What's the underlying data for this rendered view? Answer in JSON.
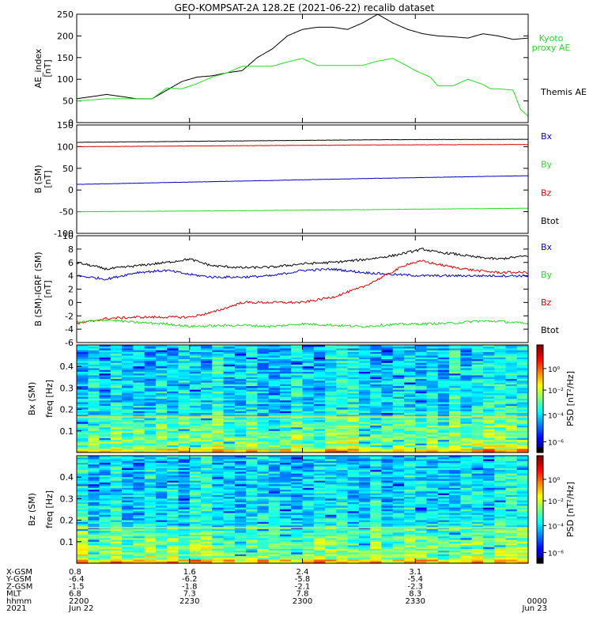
{
  "title": "GEO-KOMPSAT-2A 128.2E (2021-06-22) recalib dataset",
  "colors": {
    "black": "#000000",
    "green": "#22dd22",
    "red": "#dd0000",
    "blue": "#0000cc",
    "kyoto": "#22cc22"
  },
  "chart_data": [
    {
      "type": "line",
      "name": "ae",
      "ylabel_lines": [
        "AE_index",
        "[nT]"
      ],
      "ylim": [
        0,
        250
      ],
      "yticks": [
        "0",
        "50",
        "100",
        "150",
        "200",
        "250"
      ],
      "legend": [
        {
          "label": "Kyoto\nproxy AE",
          "color": "green"
        },
        {
          "label": "Themis AE",
          "color": "black"
        }
      ],
      "series": [
        {
          "name": "Themis AE",
          "color": "black",
          "x": [
            0,
            4,
            6,
            8,
            10,
            12,
            14,
            16,
            18,
            20,
            22,
            24,
            26,
            28,
            30,
            32,
            34,
            36,
            38,
            40,
            42,
            44,
            46,
            48,
            50,
            52,
            54,
            56,
            58,
            60
          ],
          "y": [
            55,
            65,
            60,
            55,
            55,
            75,
            95,
            105,
            108,
            115,
            120,
            150,
            170,
            200,
            215,
            220,
            220,
            215,
            230,
            250,
            230,
            215,
            205,
            200,
            198,
            195,
            205,
            200,
            192,
            195
          ]
        },
        {
          "name": "Kyoto proxy AE",
          "color": "green",
          "x": [
            0,
            4,
            6,
            8,
            10,
            12,
            14,
            16,
            18,
            20,
            22,
            24,
            26,
            28,
            30,
            32,
            34,
            36,
            38,
            40,
            42,
            44,
            45,
            47,
            48,
            50,
            52,
            54,
            55,
            56,
            58,
            59,
            60
          ],
          "y": [
            50,
            55,
            55,
            55,
            55,
            80,
            78,
            90,
            105,
            115,
            130,
            130,
            130,
            140,
            148,
            132,
            132,
            132,
            132,
            142,
            148,
            130,
            120,
            105,
            85,
            85,
            100,
            88,
            78,
            78,
            75,
            30,
            15
          ]
        }
      ]
    },
    {
      "type": "line",
      "name": "bsm",
      "ylabel_lines": [
        "B (SM)",
        "[nT]"
      ],
      "ylim": [
        -100,
        150
      ],
      "yticks": [
        "-100",
        "-50",
        "0",
        "50",
        "100",
        "150"
      ],
      "legend": [
        {
          "label": "Bx",
          "color": "blue"
        },
        {
          "label": "By",
          "color": "green"
        },
        {
          "label": "Bz",
          "color": "red"
        },
        {
          "label": "Btot",
          "color": "black"
        }
      ],
      "series": [
        {
          "name": "Btot",
          "color": "black",
          "x": [
            0,
            20,
            40,
            60
          ],
          "y": [
            110,
            113,
            116,
            117
          ]
        },
        {
          "name": "Bz",
          "color": "red",
          "x": [
            0,
            20,
            40,
            60
          ],
          "y": [
            100,
            102,
            104,
            105
          ]
        },
        {
          "name": "Bx",
          "color": "blue",
          "x": [
            0,
            20,
            40,
            60
          ],
          "y": [
            13,
            20,
            27,
            33
          ]
        },
        {
          "name": "By",
          "color": "green",
          "x": [
            0,
            20,
            40,
            60
          ],
          "y": [
            -50,
            -48,
            -45,
            -42
          ]
        }
      ]
    },
    {
      "type": "line",
      "name": "bsm-igrf",
      "ylabel_lines": [
        "B (SM)-IGRF (SM)",
        "[nT]"
      ],
      "ylim": [
        -6,
        10
      ],
      "yticks": [
        "-6",
        "-4",
        "-2",
        "0",
        "2",
        "4",
        "6",
        "8",
        "10"
      ],
      "legend": [
        {
          "label": "Bx",
          "color": "blue"
        },
        {
          "label": "By",
          "color": "green"
        },
        {
          "label": "Bz",
          "color": "red"
        },
        {
          "label": "Btot",
          "color": "black"
        }
      ],
      "series": [
        {
          "name": "Btot",
          "color": "black",
          "x": [
            0,
            4,
            8,
            12,
            15,
            18,
            22,
            26,
            30,
            34,
            38,
            42,
            44,
            46,
            48,
            50,
            53,
            56,
            60
          ],
          "y": [
            6,
            5,
            5.5,
            6,
            6.5,
            5.5,
            5.2,
            5.3,
            5.8,
            6,
            6.4,
            7,
            7.5,
            8,
            7.5,
            7.3,
            6.8,
            6.5,
            7
          ]
        },
        {
          "name": "Bx",
          "color": "blue",
          "x": [
            0,
            4,
            8,
            12,
            15,
            18,
            22,
            26,
            30,
            34,
            38,
            42,
            46,
            50,
            53,
            56,
            60
          ],
          "y": [
            4,
            3.5,
            4.5,
            4.8,
            4.2,
            3.8,
            3.8,
            4,
            4.8,
            5,
            4.5,
            4.2,
            4,
            4,
            4,
            4,
            4
          ]
        },
        {
          "name": "Bz",
          "color": "red",
          "x": [
            0,
            4,
            8,
            12,
            15,
            18,
            22,
            26,
            30,
            34,
            38,
            42,
            44,
            46,
            48,
            50,
            53,
            56,
            60
          ],
          "y": [
            -3.2,
            -2.4,
            -2.2,
            -2.2,
            -2.2,
            -1.5,
            0,
            0,
            0,
            0.8,
            2.3,
            4.6,
            5.8,
            6.2,
            5.7,
            5.3,
            4.8,
            4.5,
            4.5
          ]
        },
        {
          "name": "By",
          "color": "green",
          "x": [
            0,
            4,
            8,
            12,
            15,
            18,
            22,
            26,
            30,
            34,
            38,
            42,
            46,
            50,
            53,
            56,
            60
          ],
          "y": [
            -3,
            -2.6,
            -3,
            -3.2,
            -3.6,
            -3.5,
            -3.4,
            -3.6,
            -3.2,
            -3.4,
            -3.6,
            -3.3,
            -3.2,
            -3.1,
            -2.8,
            -2.8,
            -3.2
          ]
        }
      ]
    },
    {
      "type": "heatmap",
      "name": "bx-spectrogram",
      "ylabel_lines": [
        "Bx (SM)",
        "freq [Hz]"
      ],
      "ylim": [
        0,
        0.5
      ],
      "yticks": [
        "0.1",
        "0.2",
        "0.3",
        "0.4"
      ],
      "colorbar": {
        "label": "PSD [nT²/Hz]",
        "ticks": [
          "10⁰",
          "10⁻²",
          "10⁻⁴",
          "10⁻⁶"
        ]
      }
    },
    {
      "type": "heatmap",
      "name": "bz-spectrogram",
      "ylabel_lines": [
        "Bz (SM)",
        "freq [Hz]"
      ],
      "ylim": [
        0,
        0.5
      ],
      "yticks": [
        "0.1",
        "0.2",
        "0.3",
        "0.4"
      ],
      "colorbar": {
        "label": "PSD [nT²/Hz]",
        "ticks": [
          "10⁰",
          "10⁻²",
          "10⁻⁴",
          "10⁻⁶"
        ]
      }
    }
  ],
  "xaxis": {
    "tick_minutes": [
      0,
      30,
      60,
      90,
      120
    ],
    "rows": [
      {
        "label": "X-GSM",
        "values": [
          "0.8",
          "1.6",
          "2.4",
          "3.1",
          ""
        ]
      },
      {
        "label": "Y-GSM",
        "values": [
          "-6.4",
          "-6.2",
          "-5.8",
          "-5.4",
          ""
        ]
      },
      {
        "label": "Z-GSM",
        "values": [
          "-1.5",
          "-1.8",
          "-2.1",
          "-2.3",
          ""
        ]
      },
      {
        "label": "MLT",
        "values": [
          "6.8",
          "7.3",
          "7.8",
          "8.3",
          ""
        ]
      },
      {
        "label": "hhmm",
        "values": [
          "2200",
          "2230",
          "2300",
          "2330",
          "0000"
        ]
      },
      {
        "label": "2021",
        "values": [
          "Jun 22",
          "",
          "",
          "",
          "Jun 23"
        ]
      }
    ]
  }
}
